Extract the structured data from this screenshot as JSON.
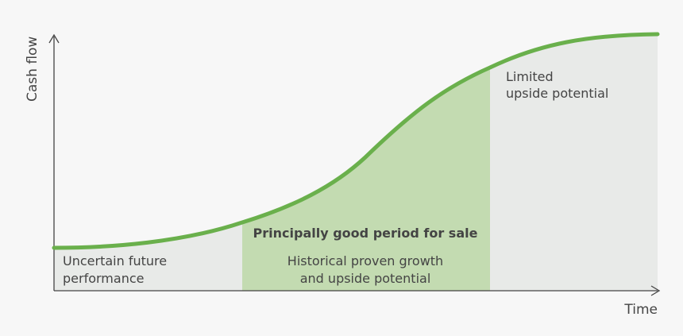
{
  "diagram": {
    "y_axis_label": "Cash flow",
    "x_axis_label": "Time",
    "regions": [
      {
        "lines": [
          "Uncertain future",
          "performance"
        ]
      },
      {
        "title": "Principally good period for sale",
        "lines": [
          "Historical proven growth",
          "and upside potential"
        ]
      },
      {
        "lines": [
          "Limited",
          "upside potential"
        ]
      }
    ]
  },
  "colors": {
    "curve": "#6ab04c",
    "shade_gray": "#e8eae8",
    "shade_green": "#c3dbb1",
    "axis": "#444444",
    "text": "#444444"
  }
}
